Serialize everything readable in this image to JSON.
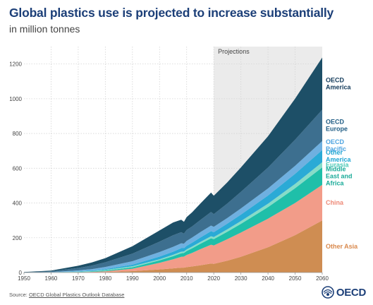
{
  "title": "Global plastics use is projected to increase substantially",
  "subtitle": "in million tonnes",
  "source": {
    "prefix": "Source: ",
    "link_text": "OECD Global Plastics Outlook Database"
  },
  "logo_text": "OECD",
  "chart_data": {
    "type": "area",
    "stacked": true,
    "x": [
      1950,
      1960,
      1970,
      1975,
      1980,
      1990,
      2000,
      2005,
      2008,
      2009,
      2010,
      2012,
      2015,
      2019,
      2020,
      2025,
      2030,
      2040,
      2050,
      2060
    ],
    "xticks": [
      1950,
      1960,
      1970,
      1980,
      1990,
      2000,
      2010,
      2020,
      2030,
      2040,
      2050,
      2060
    ],
    "yticks": [
      0,
      200,
      400,
      600,
      800,
      1000,
      1200
    ],
    "ylim": [
      0,
      1300
    ],
    "xlim": [
      1950,
      2060
    ],
    "grid": true,
    "shaded_region": {
      "label": "Projections",
      "from": 2020,
      "to": 2060
    },
    "series": [
      {
        "name": "Other Asia",
        "color": "#cf8d52",
        "label_color": "#d9894d",
        "values": [
          0,
          0.3,
          1,
          1.7,
          3,
          8,
          18,
          24,
          28,
          28,
          31,
          35,
          42,
          52,
          50,
          68,
          90,
          145,
          215,
          300
        ]
      },
      {
        "name": "China",
        "color": "#f29c89",
        "label_color": "#ee8a78",
        "values": [
          0,
          0.3,
          1,
          2,
          4,
          14,
          38,
          52,
          62,
          64,
          70,
          78,
          92,
          108,
          106,
          124,
          140,
          165,
          185,
          205
        ]
      },
      {
        "name": "Middle East and Africa",
        "color": "#1fbfa9",
        "label_color": "#1aab99",
        "values": [
          0.1,
          0.4,
          1.5,
          2.5,
          4,
          8,
          14,
          18,
          21,
          21,
          23,
          26,
          31,
          37,
          36,
          43,
          50,
          66,
          85,
          100
        ]
      },
      {
        "name": "Eurasia",
        "color": "#86dcc8",
        "label_color": "#4cc9b7",
        "values": [
          0.1,
          0.4,
          1.5,
          2.5,
          4,
          6,
          6,
          8,
          9,
          8,
          9,
          10,
          11,
          12,
          12,
          14,
          16,
          20,
          25,
          30
        ]
      },
      {
        "name": "Other America",
        "color": "#2aaad6",
        "label_color": "#1fa6d3",
        "values": [
          0.1,
          0.4,
          2,
          3,
          5,
          9,
          16,
          18,
          20,
          19,
          21,
          23,
          25,
          29,
          28,
          32,
          37,
          47,
          58,
          70
        ]
      },
      {
        "name": "OECD Pacific",
        "color": "#6fb0e0",
        "label_color": "#4da3e0",
        "values": [
          0.3,
          1.5,
          5,
          8,
          12,
          20,
          26,
          28,
          28,
          26,
          28,
          29,
          31,
          32,
          31,
          33,
          36,
          41,
          46,
          52
        ]
      },
      {
        "name": "OECD Europe",
        "color": "#3d6f8f",
        "label_color": "#1f5c84",
        "values": [
          1,
          4,
          14,
          20,
          27,
          44,
          60,
          66,
          64,
          58,
          63,
          64,
          70,
          78,
          73,
          83,
          95,
          120,
          150,
          180
        ]
      },
      {
        "name": "OECD America",
        "color": "#1d4f67",
        "label_color": "#123a5a",
        "values": [
          1.4,
          4,
          13,
          18,
          24,
          42,
          64,
          74,
          72,
          68,
          74,
          81,
          94,
          112,
          106,
          122,
          140,
          180,
          236,
          300
        ]
      }
    ],
    "legend_placement": "right, at stack ends"
  }
}
